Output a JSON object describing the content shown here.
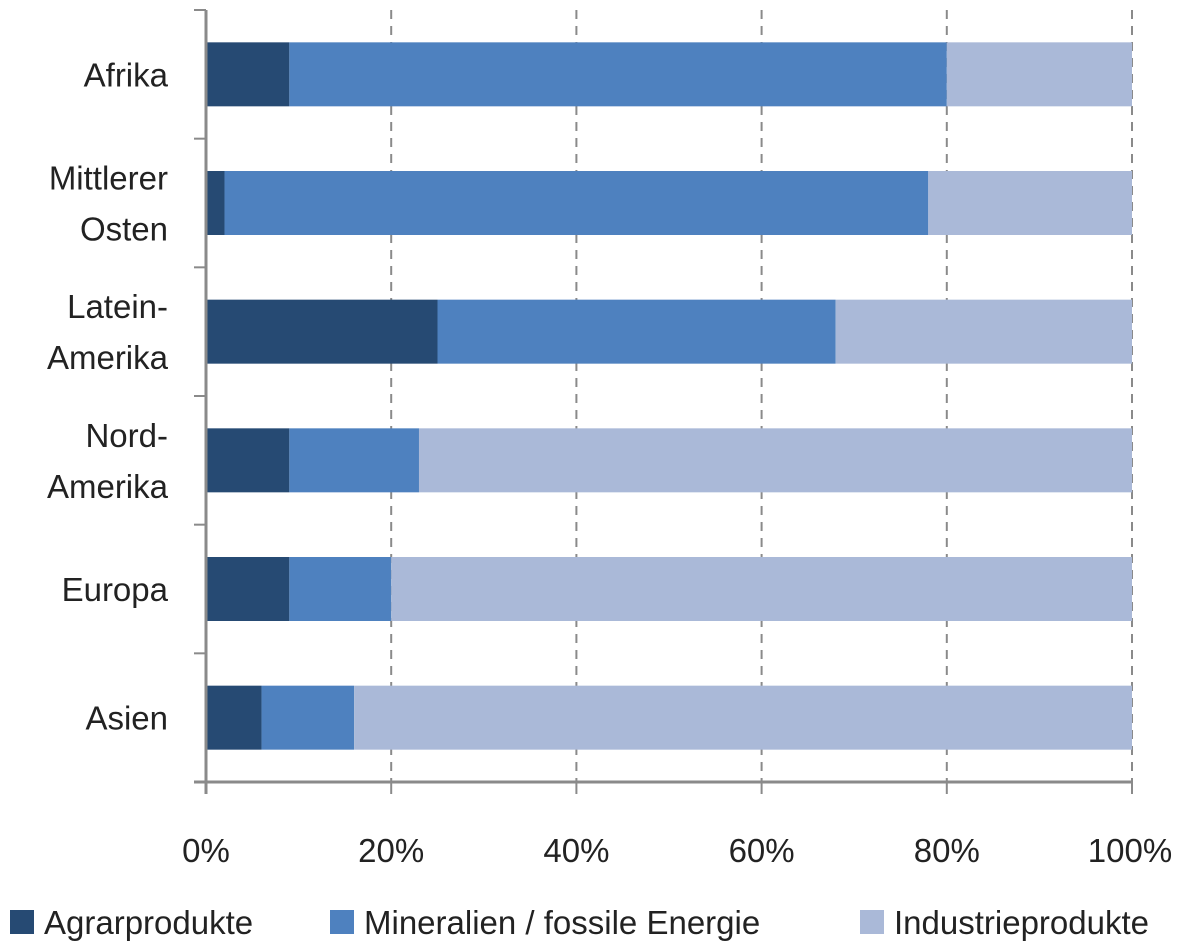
{
  "chart_data": {
    "type": "bar",
    "orientation": "horizontal",
    "stacked": "percent",
    "categories": [
      [
        "Afrika"
      ],
      [
        "Mittlerer",
        "Osten"
      ],
      [
        "Latein-",
        "Amerika"
      ],
      [
        "Nord-",
        "Amerika"
      ],
      [
        "Europa"
      ],
      [
        "Asien"
      ]
    ],
    "series": [
      {
        "name": "Agrarprodukte",
        "color": "#264a73",
        "values": [
          9,
          2,
          25,
          9,
          9,
          6
        ]
      },
      {
        "name": "Mineralien / fossile Energie",
        "color": "#4e81bf",
        "values": [
          71,
          76,
          43,
          14,
          11,
          10
        ]
      },
      {
        "name": "Industrieprodukte",
        "color": "#aab9d8",
        "values": [
          20,
          22,
          32,
          77,
          80,
          84
        ]
      }
    ],
    "xaxis": {
      "ticks": [
        0,
        20,
        40,
        60,
        80,
        100
      ],
      "tick_labels": [
        "0%",
        "20%",
        "40%",
        "60%",
        "80%",
        "100%"
      ],
      "range": [
        0,
        100
      ]
    },
    "grid": "vertical-dashed",
    "legend": "bottom"
  }
}
